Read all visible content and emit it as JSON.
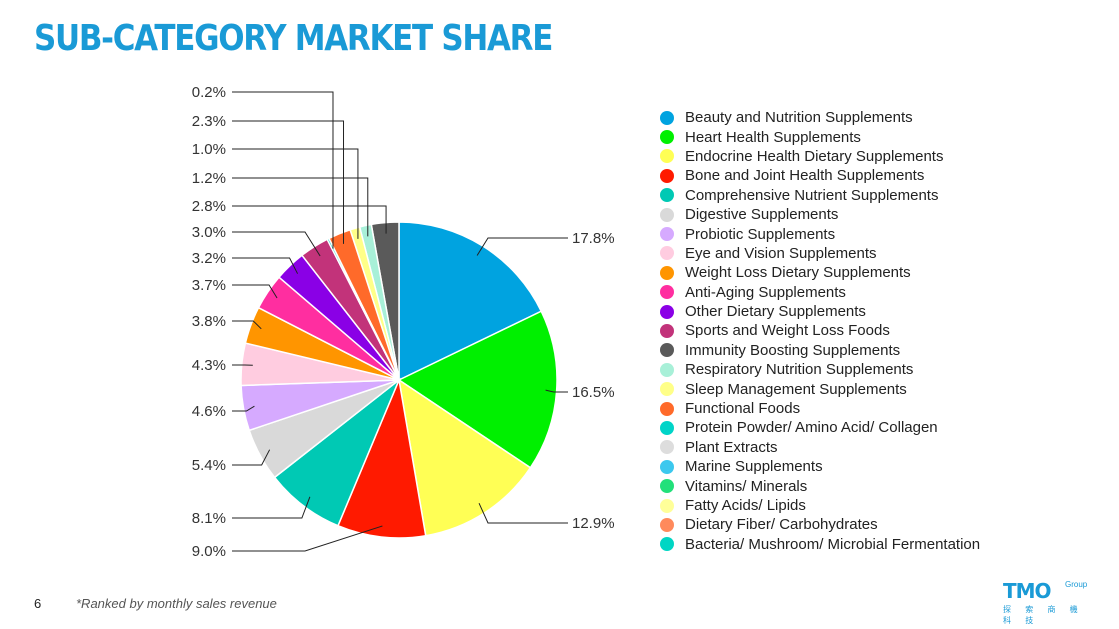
{
  "page": {
    "title": "SUB-CATEGORY MARKET SHARE",
    "page_number": "6",
    "footnote": "*Ranked by monthly sales revenue",
    "logo": {
      "main": "TMO",
      "sub": "Group",
      "tagline": "探 索 商 機 科 技"
    }
  },
  "chart_data": {
    "type": "pie",
    "title": "SUB-CATEGORY MARKET SHARE",
    "legend_position": "right",
    "slices": [
      {
        "label": "Beauty and Nutrition Supplements",
        "value": 17.8,
        "display": "17.8%",
        "color": "#00a3e0"
      },
      {
        "label": "Heart Health Supplements",
        "value": 16.5,
        "display": "16.5%",
        "color": "#00f000"
      },
      {
        "label": "Endocrine Health Dietary Supplements",
        "value": 12.9,
        "display": "12.9%",
        "color": "#ffff55"
      },
      {
        "label": "Bone and Joint Health Supplements",
        "value": 9.0,
        "display": "9.0%",
        "color": "#ff1a00"
      },
      {
        "label": "Comprehensive Nutrient Supplements",
        "value": 8.1,
        "display": "8.1%",
        "color": "#00c9b4"
      },
      {
        "label": "Digestive Supplements",
        "value": 5.4,
        "display": "5.4%",
        "color": "#d9d9d9"
      },
      {
        "label": "Probiotic Supplements",
        "value": 4.6,
        "display": "4.6%",
        "color": "#d6aaff"
      },
      {
        "label": "Eye and Vision Supplements",
        "value": 4.3,
        "display": "4.3%",
        "color": "#ffcce0"
      },
      {
        "label": "Weight Loss Dietary Supplements",
        "value": 3.8,
        "display": "3.8%",
        "color": "#ff9500"
      },
      {
        "label": "Anti-Aging Supplements",
        "value": 3.7,
        "display": "3.7%",
        "color": "#ff2ea0"
      },
      {
        "label": "Other Dietary Supplements",
        "value": 3.2,
        "display": "3.2%",
        "color": "#8a00e6"
      },
      {
        "label": "Sports and Weight Loss Foods",
        "value": 3.0,
        "display": "3.0%",
        "color": "#c2337a"
      },
      {
        "label": "Immunity Boosting Supplements",
        "value": 2.8,
        "display": "2.8%",
        "color": "#5a5a5a"
      },
      {
        "label": "Respiratory Nutrition Supplements",
        "value": 1.2,
        "display": "1.2%",
        "color": "#a8f0d8"
      },
      {
        "label": "Sleep Management Supplements",
        "value": 1.0,
        "display": "1.0%",
        "color": "#ffff88"
      },
      {
        "label": "Functional Foods",
        "value": 2.3,
        "display": "2.3%",
        "color": "#ff6a2a"
      },
      {
        "label": "Protein Powder/ Amino Acid/ Collagen",
        "value": 0.2,
        "display": "0.2%",
        "color": "#00d4c8"
      },
      {
        "label": "Plant Extracts",
        "value": null,
        "display": "",
        "color": "#dddddd"
      },
      {
        "label": "Marine Supplements",
        "value": null,
        "display": "",
        "color": "#3cc8ee"
      },
      {
        "label": "Vitamins/ Minerals",
        "value": null,
        "display": "",
        "color": "#22e07a"
      },
      {
        "label": "Fatty Acids/ Lipids",
        "value": null,
        "display": "",
        "color": "#ffff99"
      },
      {
        "label": "Dietary Fiber/ Carbohydrates",
        "value": null,
        "display": "",
        "color": "#ff8a5c"
      },
      {
        "label": "Bacteria/ Mushroom/ Microbial Fermentation",
        "value": null,
        "display": "",
        "color": "#00d6c4"
      }
    ]
  }
}
